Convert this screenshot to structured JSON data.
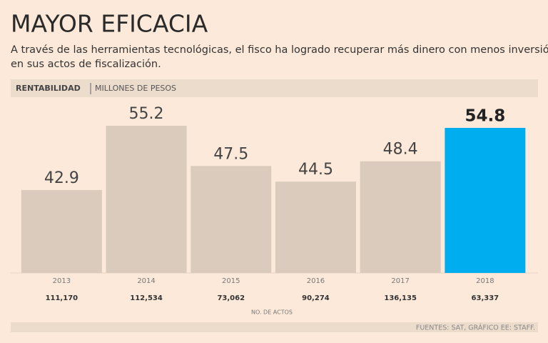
{
  "chart_data": {
    "type": "bar",
    "title": "MAYOR EFICACIA",
    "subtitle": [
      "A través de las herramientas tecnológicas, el fisco ha logrado recuperar más dinero con menos inversión",
      "en sus actos de fiscalización."
    ],
    "measure": "RENTABILIDAD",
    "unit": "MILLONES DE PESOS",
    "categories": [
      "2013",
      "2014",
      "2015",
      "2016",
      "2017",
      "2018"
    ],
    "values": [
      42.9,
      55.2,
      47.5,
      44.5,
      48.4,
      54.8
    ],
    "colors": [
      "#dacbbc",
      "#dacbbc",
      "#dacbbc",
      "#dacbbc",
      "#dacbbc",
      "#00aeef"
    ],
    "ylim": [
      27,
      60
    ],
    "acts_label": "NO. DE ACTOS",
    "acts": [
      "111,170",
      "112,534",
      "73,062",
      "90,274",
      "136,135",
      "63,337"
    ],
    "source": "FUENTES: SAT, GRÁFICO EE: STAFF."
  }
}
